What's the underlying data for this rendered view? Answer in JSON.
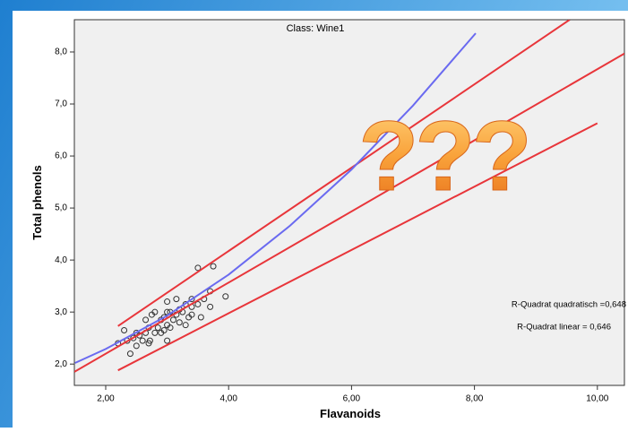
{
  "chart_data": {
    "type": "scatter",
    "title": "Class: Wine1",
    "x_label": "Flavanoids",
    "y_label": "Total phenols",
    "xlim": [
      1.49,
      10.44
    ],
    "ylim": [
      1.59,
      8.62
    ],
    "xticks": [
      {
        "value": 2,
        "label": "2,00"
      },
      {
        "value": 4,
        "label": "4,00"
      },
      {
        "value": 6,
        "label": "6,00"
      },
      {
        "value": 8,
        "label": "8,00"
      },
      {
        "value": 10,
        "label": "10,00"
      }
    ],
    "yticks": [
      {
        "value": 2,
        "label": "2,0"
      },
      {
        "value": 3,
        "label": "3,0"
      },
      {
        "value": 4,
        "label": "4,0"
      },
      {
        "value": 5,
        "label": "5,0"
      },
      {
        "value": 6,
        "label": "6,0"
      },
      {
        "value": 7,
        "label": "7,0"
      },
      {
        "value": 8,
        "label": "8,0"
      }
    ],
    "annotations": [
      "R-Quadrat quadratisch =0,648",
      "R-Quadrat linear = 0,646"
    ],
    "overlay_text": "???",
    "series": [
      {
        "type": "scatter",
        "color": "#333333",
        "x": [
          2.2,
          2.3,
          2.35,
          2.4,
          2.45,
          2.5,
          2.5,
          2.55,
          2.6,
          2.65,
          2.65,
          2.7,
          2.7,
          2.72,
          2.75,
          2.8,
          2.8,
          2.85,
          2.9,
          2.9,
          2.95,
          3.0,
          3.0,
          3.0,
          3.0,
          3.05,
          3.05,
          3.1,
          3.15,
          3.15,
          3.2,
          3.25,
          3.3,
          3.3,
          3.35,
          3.4,
          3.4,
          3.4,
          3.5,
          3.55,
          3.6,
          3.7,
          3.7,
          3.75,
          3.95,
          3.5,
          2.95,
          3.2
        ],
        "values": [
          2.4,
          2.65,
          2.45,
          2.2,
          2.5,
          2.6,
          2.35,
          2.55,
          2.45,
          2.6,
          2.85,
          2.4,
          2.7,
          2.45,
          2.95,
          2.6,
          3.0,
          2.7,
          2.6,
          2.85,
          2.9,
          2.45,
          2.75,
          3.0,
          3.2,
          2.7,
          3.0,
          2.85,
          3.25,
          2.95,
          2.8,
          3.0,
          2.75,
          3.15,
          2.9,
          3.25,
          3.1,
          2.95,
          3.85,
          2.9,
          3.25,
          3.4,
          3.1,
          3.88,
          3.3,
          3.15,
          2.65,
          3.05
        ]
      },
      {
        "type": "line",
        "color": "#e8353a",
        "x": [
          2.2,
          9.55
        ],
        "values": [
          2.73,
          8.62
        ]
      },
      {
        "type": "line",
        "color": "#e8353a",
        "x": [
          1.49,
          10.44
        ],
        "values": [
          1.85,
          7.97
        ]
      },
      {
        "type": "line",
        "color": "#e8353a",
        "x": [
          2.2,
          10.0
        ],
        "values": [
          1.88,
          6.63
        ]
      },
      {
        "type": "line",
        "color": "#6a6af0",
        "x": [
          1.5,
          2,
          3,
          4,
          5,
          6,
          7,
          8.02
        ],
        "values": [
          2.02,
          2.29,
          2.93,
          3.72,
          4.66,
          5.74,
          6.97,
          8.36
        ]
      }
    ]
  }
}
